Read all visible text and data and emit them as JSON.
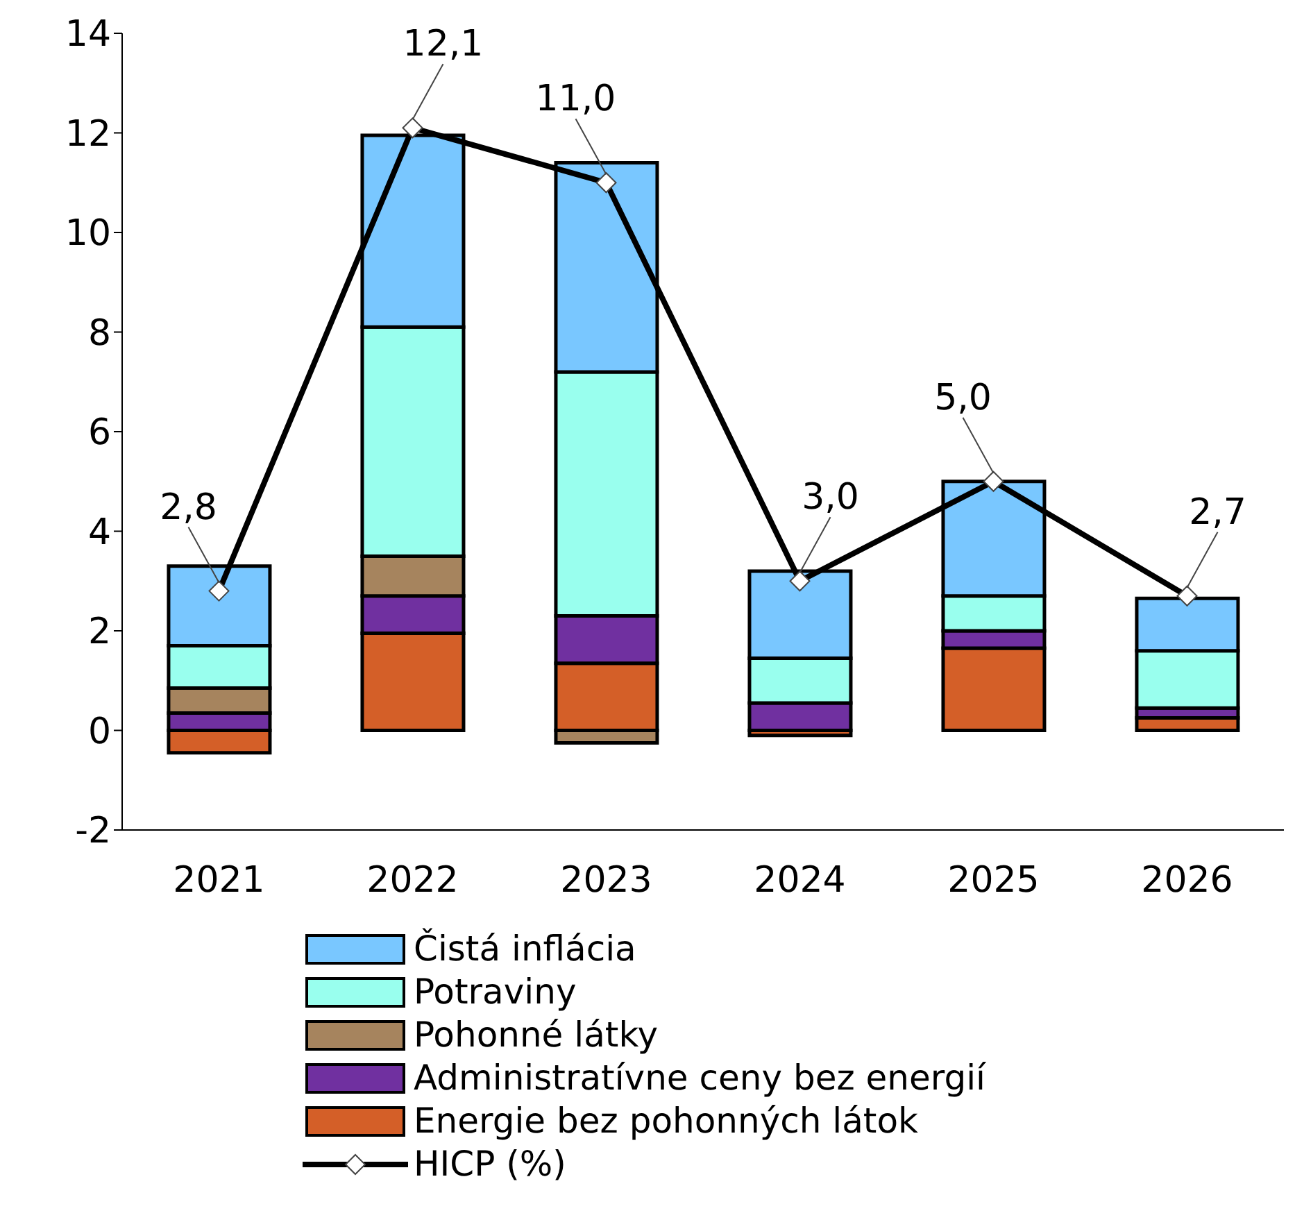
{
  "chart_data": {
    "type": "bar",
    "stacked": true,
    "categories": [
      "2021",
      "2022",
      "2023",
      "2024",
      "2025",
      "2026"
    ],
    "series": [
      {
        "name": "Energie bez pohonných látok",
        "color": "#d45f28",
        "values": [
          -0.45,
          1.95,
          1.35,
          -0.1,
          1.65,
          0.25
        ]
      },
      {
        "name": "Administratívne ceny bez energií",
        "color": "#7030a0",
        "values": [
          0.35,
          0.75,
          0.95,
          0.55,
          0.35,
          0.2
        ]
      },
      {
        "name": "Pohonné látky",
        "color": "#a6845e",
        "values": [
          0.5,
          0.8,
          -0.25,
          null,
          null,
          null
        ]
      },
      {
        "name": "Potraviny",
        "color": "#99ffee",
        "values": [
          0.85,
          4.6,
          4.9,
          0.9,
          0.7,
          1.15
        ]
      },
      {
        "name": "Čistá inflácia",
        "color": "#79c7ff",
        "values": [
          1.6,
          3.85,
          4.2,
          1.75,
          2.3,
          1.05
        ]
      },
      {
        "name": "HICP (%)",
        "type": "line",
        "color": "#000000",
        "marker": "diamond",
        "values": [
          2.8,
          12.1,
          11.0,
          3.0,
          5.0,
          2.7
        ],
        "value_labels": [
          "2,8",
          "12,1",
          "11,0",
          "3,0",
          "5,0",
          "2,7"
        ]
      }
    ],
    "ylim": [
      -2,
      14
    ],
    "yticks": [
      -2,
      0,
      2,
      4,
      6,
      8,
      10,
      12,
      14
    ],
    "grid": false,
    "legend": "bottom"
  }
}
